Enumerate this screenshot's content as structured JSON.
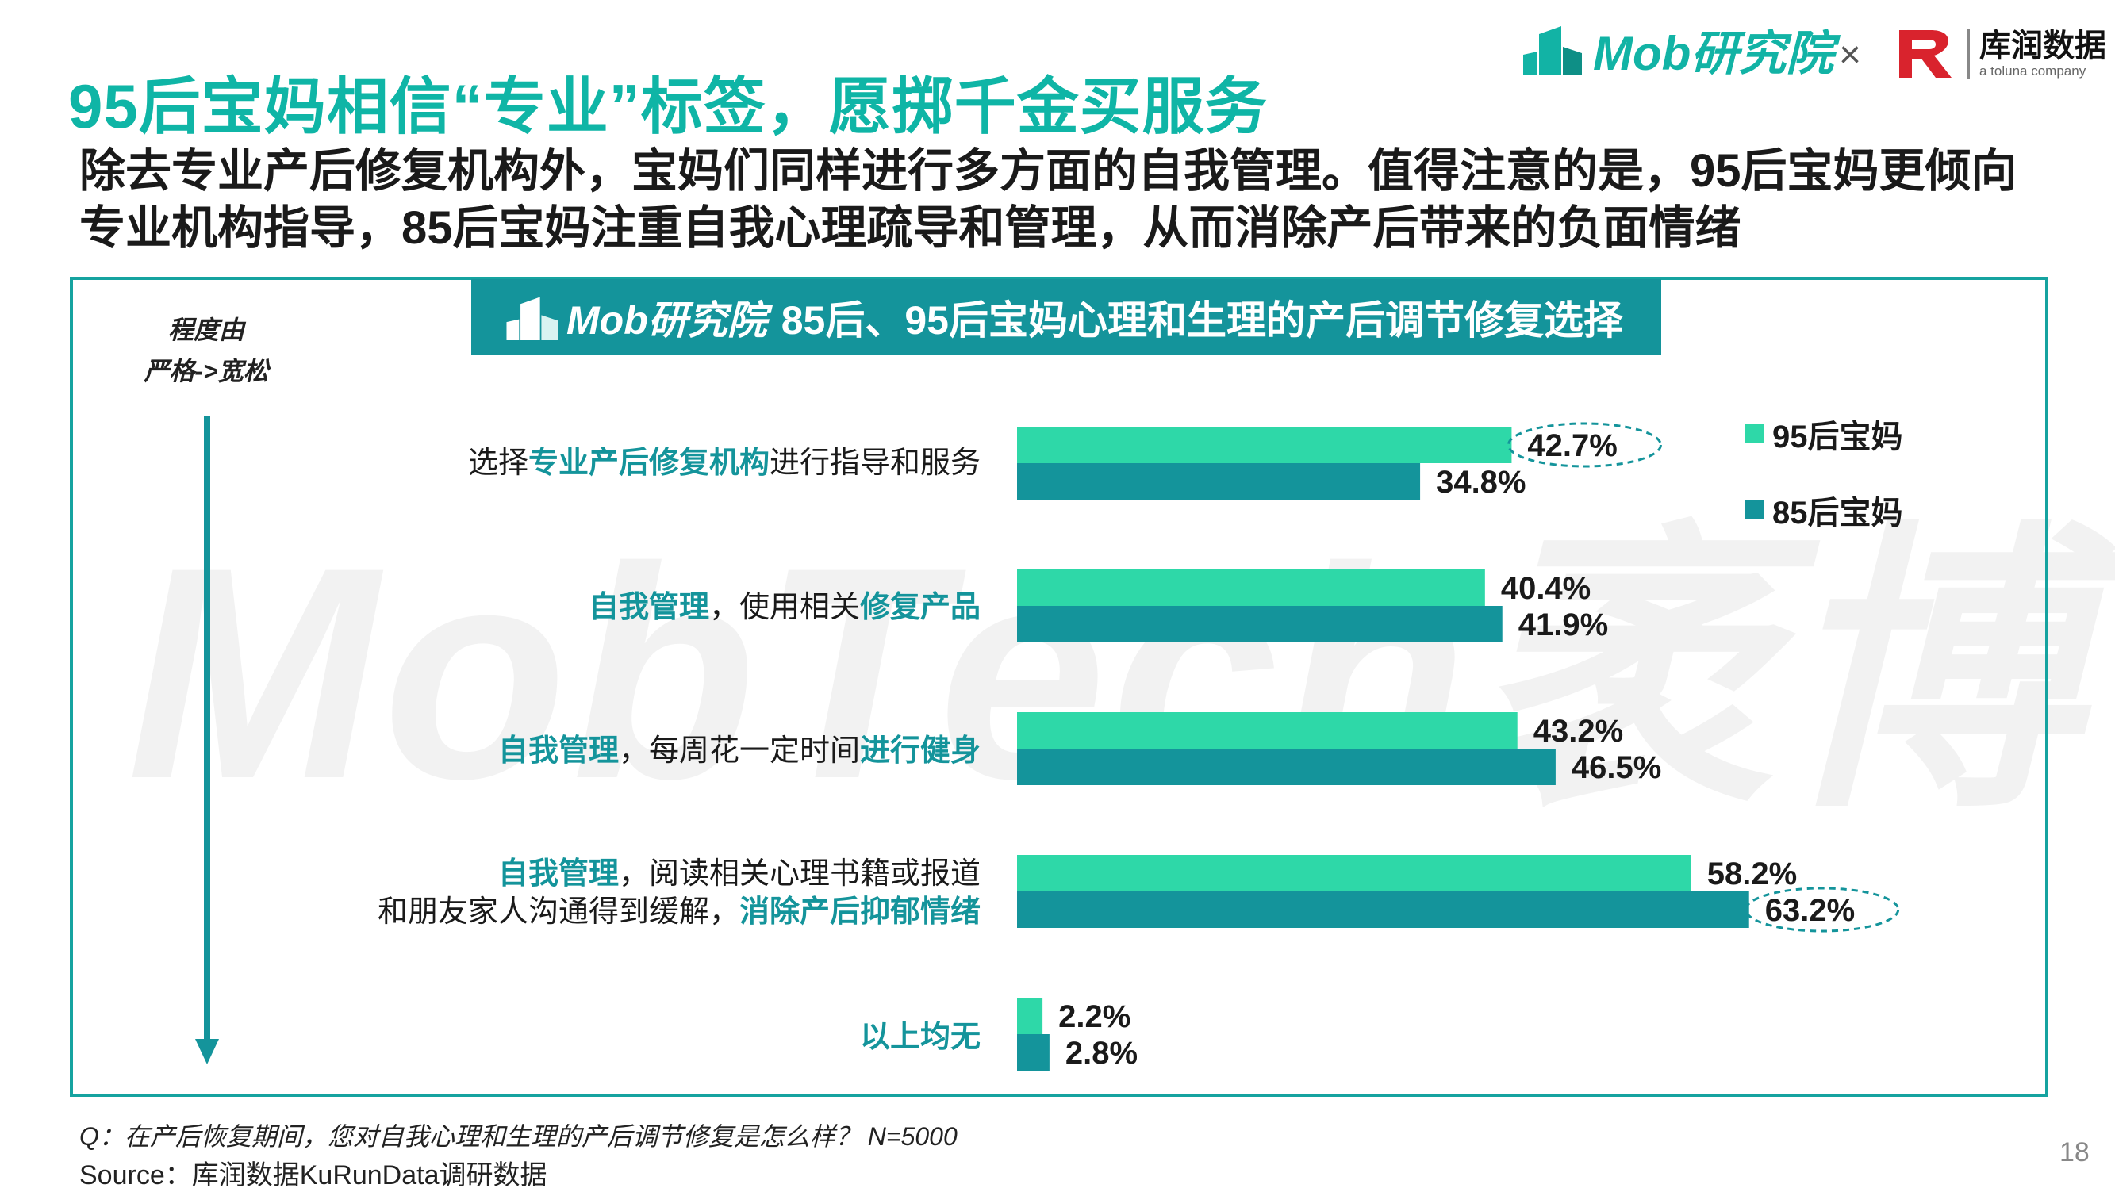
{
  "header": {
    "title": "95后宝妈相信“专业”标签，愿掷千金买服务",
    "subtitle": "除去专业产后修复机构外，宝妈们同样进行多方面的自我管理。值得注意的是，95后宝妈更倾向专业机构指导，85后宝妈注重自我心理疏导和管理，从而消除产后带来的负面情绪",
    "logo_mob": "Mob研究院",
    "logo_x": "×",
    "logo_kr_name": "库润数据",
    "logo_kr_tag": "a toluna company"
  },
  "banner": {
    "logo_text": "Mob研究院",
    "title": "85后、95后宝妈心理和生理的产后调节修复选择"
  },
  "axis_label": {
    "line1": "程度由",
    "line2": "严格->宽松"
  },
  "watermark": "MobTech袤博",
  "categories": [
    {
      "parts": [
        {
          "t": "选择",
          "hl": false
        },
        {
          "t": "专业产后修复机构",
          "hl": true
        },
        {
          "t": "进行指导和服务",
          "hl": false
        }
      ]
    },
    {
      "parts": [
        {
          "t": "自我管理",
          "hl": true
        },
        {
          "t": "，使用相关",
          "hl": false
        },
        {
          "t": "修复产品",
          "hl": true
        }
      ]
    },
    {
      "parts": [
        {
          "t": "自我管理",
          "hl": true
        },
        {
          "t": "，每周花一定时间",
          "hl": false
        },
        {
          "t": "进行健身",
          "hl": true
        }
      ]
    },
    {
      "lines": [
        [
          {
            "t": "自我管理",
            "hl": true
          },
          {
            "t": "，阅读相关心理书籍或报道",
            "hl": false
          }
        ],
        [
          {
            "t": "和朋友家人沟通得到缓解，",
            "hl": false
          },
          {
            "t": "消除产后抑郁情绪",
            "hl": true
          }
        ]
      ]
    },
    {
      "parts": [
        {
          "t": "以上均无",
          "hl": true
        }
      ]
    }
  ],
  "chart_data": {
    "type": "bar",
    "orientation": "horizontal",
    "title": "85后、95后宝妈心理和生理的产后调节修复选择",
    "categories": [
      "选择专业产后修复机构进行指导和服务",
      "自我管理，使用相关修复产品",
      "自我管理，每周花一定时间进行健身",
      "自我管理，阅读相关心理书籍或报道和朋友家人沟通得到缓解，消除产后抑郁情绪",
      "以上均无"
    ],
    "series": [
      {
        "name": "95后宝妈",
        "values": [
          42.7,
          40.4,
          43.2,
          58.2,
          2.2
        ],
        "color": "#2ed8a8"
      },
      {
        "name": "85后宝妈",
        "values": [
          34.8,
          41.9,
          46.5,
          63.2,
          2.8
        ],
        "color": "#14949b"
      }
    ],
    "value_suffix": "%",
    "highlighted": [
      {
        "series": 0,
        "index": 0
      },
      {
        "series": 1,
        "index": 3
      }
    ],
    "legend_position": "top-right",
    "grid": false
  },
  "footer": {
    "question": "Q：在产后恢复期间，您对自我心理和生理的产后调节修复是怎么样？  N=5000",
    "source": "Source：库润数据KuRunData调研数据",
    "page": "18"
  }
}
